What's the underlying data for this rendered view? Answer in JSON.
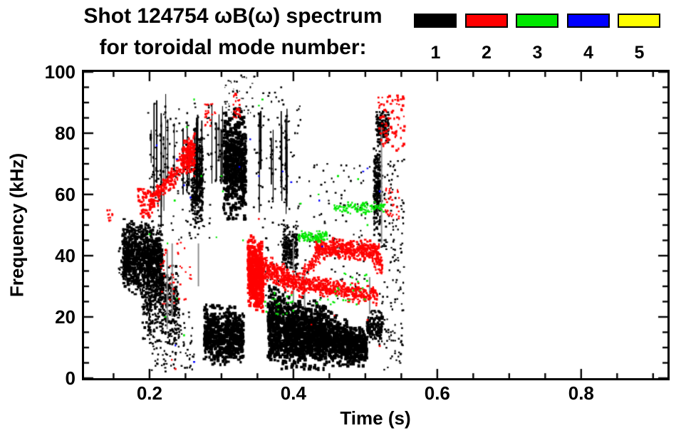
{
  "title": {
    "line1": "Shot 124754 ωB(ω) spectrum",
    "line2": "for toroidal mode number:"
  },
  "legend": {
    "entries": [
      {
        "label": "1",
        "color": "#000000"
      },
      {
        "label": "2",
        "color": "#ff0000"
      },
      {
        "label": "3",
        "color": "#00e800"
      },
      {
        "label": "4",
        "color": "#0000ff"
      },
      {
        "label": "5",
        "color": "#ffff00"
      }
    ]
  },
  "chart_data": {
    "type": "scatter",
    "title": "Shot 124754 ωB(ω) spectrum for toroidal mode number: 1-5",
    "xlabel": "Time (s)",
    "ylabel": "Frequency (kHz)",
    "xlim": [
      0.109,
      0.92
    ],
    "ylim": [
      0,
      100
    ],
    "x_major_ticks": [
      0.2,
      0.4,
      0.6,
      0.8
    ],
    "x_tick_labels": [
      "0.2",
      "0.4",
      "0.6",
      "0.8"
    ],
    "x_minor_step": 0.05,
    "y_major_ticks": [
      0,
      20,
      40,
      60,
      80,
      100
    ],
    "y_tick_labels": [
      "0",
      "20",
      "40",
      "60",
      "80",
      "100"
    ],
    "y_minor_step": 5,
    "grid": false,
    "legend_position": "top-right",
    "modes": {
      "1": "#000000",
      "2": "#ff0000",
      "3": "#00e800",
      "4": "#0000ff",
      "5": "#ffff00"
    },
    "features": [
      {
        "mode": 1,
        "shape": "dots",
        "t": [
          0.157,
          0.172
        ],
        "f": [
          33,
          43
        ],
        "n": 45,
        "size": [
          2,
          3
        ]
      },
      {
        "mode": 1,
        "shape": "blob",
        "t": [
          0.163,
          0.218
        ],
        "f": [
          [
            29,
            52
          ],
          [
            24,
            50
          ]
        ],
        "n": 950,
        "size": [
          2,
          5
        ]
      },
      {
        "mode": 1,
        "shape": "blob",
        "t": [
          0.19,
          0.241
        ],
        "f": [
          [
            13,
            42
          ],
          [
            11,
            36
          ]
        ],
        "n": 420,
        "size": [
          2,
          4
        ]
      },
      {
        "mode": 1,
        "shape": "streaks",
        "t": [
          0.198,
          0.281
        ],
        "f": [
          [
            50,
            96
          ],
          [
            46,
            86
          ]
        ],
        "n": 20,
        "size": [
          1,
          2
        ]
      },
      {
        "mode": 1,
        "shape": "dots",
        "t": [
          0.198,
          0.285
        ],
        "f": [
          45,
          90
        ],
        "n": 130,
        "size": [
          2,
          3
        ]
      },
      {
        "mode": 1,
        "shape": "blob",
        "t": [
          0.258,
          0.274
        ],
        "f": [
          48,
          78
        ],
        "n": 260,
        "size": [
          2,
          4
        ]
      },
      {
        "mode": 1,
        "shape": "blob",
        "t": [
          0.303,
          0.334
        ],
        "f": [
          52,
          88
        ],
        "n": 650,
        "size": [
          3,
          5
        ]
      },
      {
        "mode": 1,
        "shape": "dots",
        "t": [
          0.298,
          0.347
        ],
        "f": [
          86,
          99
        ],
        "n": 45,
        "size": [
          1,
          3
        ]
      },
      {
        "mode": 1,
        "shape": "streaks",
        "t": [
          0.283,
          0.302
        ],
        "f": [
          55,
          92
        ],
        "n": 5,
        "size": [
          1,
          2
        ]
      },
      {
        "mode": 1,
        "shape": "streaks",
        "t": [
          0.345,
          0.402
        ],
        "f": [
          [
            52,
            92
          ],
          [
            50,
            88
          ]
        ],
        "n": 10,
        "size": [
          1,
          2
        ]
      },
      {
        "mode": 1,
        "shape": "dots",
        "t": [
          0.345,
          0.41
        ],
        "f": [
          48,
          95
        ],
        "n": 80,
        "size": [
          2,
          3
        ]
      },
      {
        "mode": 1,
        "shape": "dots",
        "t": [
          0.2,
          0.262
        ],
        "f": [
          2,
          22
        ],
        "n": 130,
        "size": [
          2,
          3
        ]
      },
      {
        "mode": 1,
        "shape": "blob",
        "t": [
          0.276,
          0.331
        ],
        "f": [
          [
            4,
            24
          ],
          [
            5,
            23
          ]
        ],
        "n": 650,
        "size": [
          3,
          5
        ]
      },
      {
        "mode": 1,
        "shape": "blob",
        "t": [
          0.385,
          0.406
        ],
        "f": [
          34,
          50
        ],
        "n": 200,
        "size": [
          2,
          4
        ]
      },
      {
        "mode": 1,
        "shape": "blob",
        "t": [
          0.365,
          0.446
        ],
        "f": [
          [
            3,
            30
          ],
          [
            3,
            24
          ]
        ],
        "n": 1000,
        "size": [
          3,
          6
        ]
      },
      {
        "mode": 1,
        "shape": "blob",
        "t": [
          0.446,
          0.502
        ],
        "f": [
          [
            4,
            23
          ],
          [
            4,
            15
          ]
        ],
        "n": 620,
        "size": [
          3,
          5
        ]
      },
      {
        "mode": 1,
        "shape": "blob",
        "t": [
          0.502,
          0.524
        ],
        "f": [
          11,
          22
        ],
        "n": 170,
        "size": [
          2,
          4
        ]
      },
      {
        "mode": 1,
        "shape": "dots",
        "t": [
          0.36,
          0.5
        ],
        "f": [
          25,
          47
        ],
        "n": 90,
        "size": [
          2,
          3
        ]
      },
      {
        "mode": 1,
        "shape": "dots",
        "t": [
          0.42,
          0.512
        ],
        "f": [
          45,
          70
        ],
        "n": 50,
        "size": [
          2,
          3
        ]
      },
      {
        "mode": 1,
        "shape": "blob",
        "t": [
          0.512,
          0.522
        ],
        "f": [
          45,
          78
        ],
        "n": 230,
        "size": [
          2,
          4
        ]
      },
      {
        "mode": 1,
        "shape": "blob",
        "t": [
          0.515,
          0.533
        ],
        "f": [
          77,
          88
        ],
        "n": 130,
        "size": [
          2,
          4
        ]
      },
      {
        "mode": 1,
        "shape": "dots",
        "t": [
          0.52,
          0.554
        ],
        "f": [
          2,
          72
        ],
        "n": 160,
        "size": [
          2,
          3
        ]
      },
      {
        "mode": 1,
        "shape": "bars",
        "color": "#8d8d8d",
        "size": [
          2,
          2
        ],
        "bars": [
          [
            0.2245,
            16,
            42
          ],
          [
            0.2315,
            20,
            44
          ],
          [
            0.268,
            30,
            44
          ],
          [
            0.4,
            24,
            45
          ],
          [
            0.4155,
            23,
            34
          ],
          [
            0.506,
            21,
            33
          ],
          [
            0.5225,
            44,
            82
          ]
        ]
      },
      {
        "mode": 2,
        "shape": "dots",
        "t": [
          0.141,
          0.149
        ],
        "f": [
          51,
          55
        ],
        "n": 12,
        "size": [
          2,
          3
        ]
      },
      {
        "mode": 2,
        "shape": "dots",
        "t": [
          0.184,
          0.202
        ],
        "f": [
          52,
          62
        ],
        "n": 55,
        "size": [
          2,
          4
        ]
      },
      {
        "mode": 2,
        "shape": "blob",
        "t": [
          0.2,
          0.263
        ],
        "f": [
          [
            53,
            60
          ],
          [
            70,
            80
          ]
        ],
        "n": 230,
        "size": [
          2,
          4
        ]
      },
      {
        "mode": 2,
        "shape": "blob",
        "t": [
          0.245,
          0.263
        ],
        "f": [
          66,
          79
        ],
        "n": 150,
        "size": [
          2,
          4
        ]
      },
      {
        "mode": 2,
        "shape": "dots",
        "t": [
          0.215,
          0.258
        ],
        "f": [
          24,
          45
        ],
        "n": 40,
        "size": [
          2,
          3
        ]
      },
      {
        "mode": 2,
        "shape": "dots",
        "t": [
          0.277,
          0.292
        ],
        "f": [
          82,
          90
        ],
        "n": 22,
        "size": [
          2,
          3
        ]
      },
      {
        "mode": 2,
        "shape": "dots",
        "t": [
          0.316,
          0.327
        ],
        "f": [
          85,
          93
        ],
        "n": 28,
        "size": [
          2,
          3
        ]
      },
      {
        "mode": 2,
        "shape": "blob",
        "t": [
          0.337,
          0.358
        ],
        "f": [
          [
            24,
            47
          ],
          [
            21,
            44
          ]
        ],
        "n": 520,
        "size": [
          3,
          5
        ]
      },
      {
        "mode": 2,
        "shape": "blob",
        "t": [
          0.358,
          0.416
        ],
        "f": [
          [
            31,
            41
          ],
          [
            26,
            34
          ]
        ],
        "n": 300,
        "size": [
          2,
          4
        ]
      },
      {
        "mode": 2,
        "shape": "blob",
        "t": [
          0.416,
          0.517
        ],
        "f": [
          [
            28,
            34
          ],
          [
            23,
            30
          ]
        ],
        "n": 330,
        "size": [
          2,
          4
        ]
      },
      {
        "mode": 2,
        "shape": "blob",
        "t": [
          0.412,
          0.437
        ],
        "f": [
          [
            31,
            37
          ],
          [
            37,
            43
          ]
        ],
        "n": 80,
        "size": [
          2,
          3
        ]
      },
      {
        "mode": 2,
        "shape": "blob",
        "t": [
          0.43,
          0.519
        ],
        "f": [
          [
            39,
            46
          ],
          [
            38,
            45
          ]
        ],
        "n": 430,
        "size": [
          2,
          4
        ]
      },
      {
        "mode": 2,
        "shape": "blob",
        "t": [
          0.512,
          0.524
        ],
        "f": [
          33,
          41
        ],
        "n": 60,
        "size": [
          2,
          3
        ]
      },
      {
        "mode": 2,
        "shape": "dots",
        "t": [
          0.518,
          0.555
        ],
        "f": [
          74,
          93
        ],
        "n": 80,
        "size": [
          2,
          4
        ]
      },
      {
        "mode": 2,
        "shape": "dots",
        "t": [
          0.528,
          0.547
        ],
        "f": [
          52,
          62
        ],
        "n": 30,
        "size": [
          2,
          3
        ]
      },
      {
        "mode": 2,
        "shape": "points",
        "size": [
          2,
          3
        ],
        "points": [
          [
            0.503,
            19
          ],
          [
            0.52,
            10.5
          ],
          [
            0.425,
            17.5
          ],
          [
            0.231,
            6
          ],
          [
            0.236,
            3
          ],
          [
            0.457,
            20.5
          ],
          [
            0.352,
            52
          ]
        ]
      },
      {
        "mode": 3,
        "shape": "blob",
        "t": [
          0.406,
          0.447
        ],
        "f": [
          44.5,
          48
        ],
        "n": 110,
        "size": [
          2,
          3
        ]
      },
      {
        "mode": 3,
        "shape": "blob",
        "t": [
          0.456,
          0.527
        ],
        "f": [
          53.5,
          57.5
        ],
        "n": 120,
        "size": [
          2,
          3
        ]
      },
      {
        "mode": 3,
        "shape": "dots",
        "t": [
          0.36,
          0.4
        ],
        "f": [
          20,
          28
        ],
        "n": 20,
        "size": [
          2,
          3
        ]
      },
      {
        "mode": 3,
        "shape": "dots",
        "t": [
          0.432,
          0.503
        ],
        "f": [
          24,
          35
        ],
        "n": 26,
        "size": [
          2,
          3
        ]
      },
      {
        "mode": 3,
        "shape": "points",
        "size": [
          2,
          3
        ],
        "points": [
          [
            0.252,
            82
          ],
          [
            0.262,
            91
          ],
          [
            0.272,
            66
          ],
          [
            0.3,
            66
          ],
          [
            0.302,
            61
          ],
          [
            0.352,
            89
          ],
          [
            0.357,
            91
          ],
          [
            0.235,
            58
          ],
          [
            0.225,
            44
          ],
          [
            0.222,
            20
          ],
          [
            0.238,
            26
          ],
          [
            0.248,
            14
          ],
          [
            0.462,
            66
          ],
          [
            0.503,
            50
          ],
          [
            0.435,
            60
          ],
          [
            0.2,
            47
          ],
          [
            0.293,
            46
          ],
          [
            0.33,
            45
          ],
          [
            0.41,
            57
          ],
          [
            0.49,
            65
          ]
        ]
      },
      {
        "mode": 4,
        "shape": "points",
        "size": [
          2,
          3
        ],
        "points": [
          [
            0.21,
            76
          ],
          [
            0.238,
            71.5
          ],
          [
            0.248,
            63
          ],
          [
            0.257,
            59
          ],
          [
            0.325,
            69
          ],
          [
            0.34,
            78
          ],
          [
            0.352,
            66
          ],
          [
            0.385,
            67.5
          ],
          [
            0.397,
            64
          ],
          [
            0.436,
            58
          ],
          [
            0.44,
            43
          ],
          [
            0.497,
            67.5
          ],
          [
            0.503,
            68.5
          ],
          [
            0.236,
            10.7
          ],
          [
            0.262,
            5.3
          ],
          [
            0.52,
            61
          ]
        ]
      }
    ]
  }
}
